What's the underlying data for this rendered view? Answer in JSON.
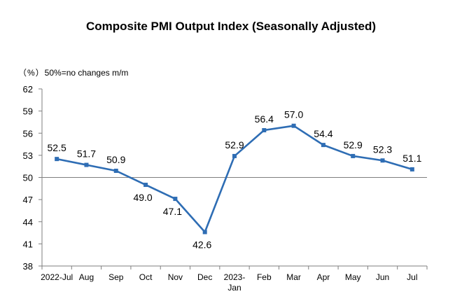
{
  "title": "Composite PMI Output Index (Seasonally Adjusted)",
  "unit_label": "（%）",
  "note": "50%=no changes m/m",
  "chart_data": {
    "type": "line",
    "title": "Composite PMI Output Index (Seasonally Adjusted)",
    "xlabel": "",
    "ylabel": "（%）",
    "categories": [
      [
        "2022-Jul"
      ],
      [
        "Aug"
      ],
      [
        "Sep"
      ],
      [
        "Oct"
      ],
      [
        "Nov"
      ],
      [
        "Dec"
      ],
      [
        "2023-",
        "Jan"
      ],
      [
        "Feb"
      ],
      [
        "Mar"
      ],
      [
        "Apr"
      ],
      [
        "May"
      ],
      [
        "Jun"
      ],
      [
        "Jul"
      ]
    ],
    "series": [
      {
        "values": [
          52.5,
          51.7,
          50.9,
          49.0,
          47.1,
          42.6,
          52.9,
          56.4,
          57.0,
          54.4,
          52.9,
          52.3,
          51.1
        ],
        "labels": [
          "52.5",
          "51.7",
          "50.9",
          "49.0",
          "47.1",
          "42.6",
          "52.9",
          "56.4",
          "57.0",
          "54.4",
          "52.9",
          "52.3",
          "51.1"
        ],
        "label_position": [
          "above",
          "above",
          "above",
          "below",
          "below",
          "below",
          "above",
          "above",
          "above",
          "above",
          "above",
          "above",
          "above"
        ],
        "color": "#2e6db4"
      }
    ],
    "ylim": [
      38,
      62
    ],
    "yticks": [
      38,
      41,
      44,
      47,
      50,
      53,
      56,
      59,
      62
    ],
    "ytick_labels": [
      "38",
      "41",
      "44",
      "47",
      "50",
      "53",
      "56",
      "59",
      "62"
    ],
    "reference_line": 50,
    "grid": false,
    "legend": "none",
    "colors": {
      "line": "#2e6db4",
      "axis": "#7f7f7f",
      "reference": "#7f7f7f"
    }
  }
}
